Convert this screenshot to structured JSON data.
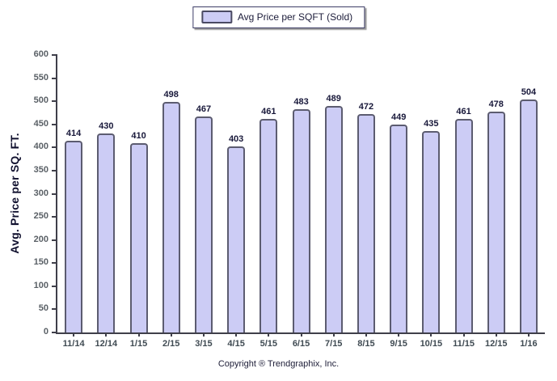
{
  "chart_data": {
    "type": "bar",
    "legend_label": "Avg Price per SQFT (Sold)",
    "ylabel": "Avg. Price per SQ. FT.",
    "categories": [
      "11/14",
      "12/14",
      "1/15",
      "2/15",
      "3/15",
      "4/15",
      "5/15",
      "6/15",
      "7/15",
      "8/15",
      "9/15",
      "10/15",
      "11/15",
      "12/15",
      "1/16"
    ],
    "values": [
      414,
      430,
      410,
      498,
      467,
      403,
      461,
      483,
      489,
      472,
      449,
      435,
      461,
      478,
      504
    ],
    "ylim": [
      0,
      600
    ],
    "ytick_step": 50,
    "grid": false,
    "legend_position": "top-center",
    "footer": "Copyright ® Trendgraphix, Inc.",
    "colors": {
      "bar_fill": "#ccccf5",
      "bar_border": "#5c5c70",
      "axis": "#3f3f4a",
      "tick_text": "#5a6066",
      "label_text": "#18183a"
    }
  }
}
